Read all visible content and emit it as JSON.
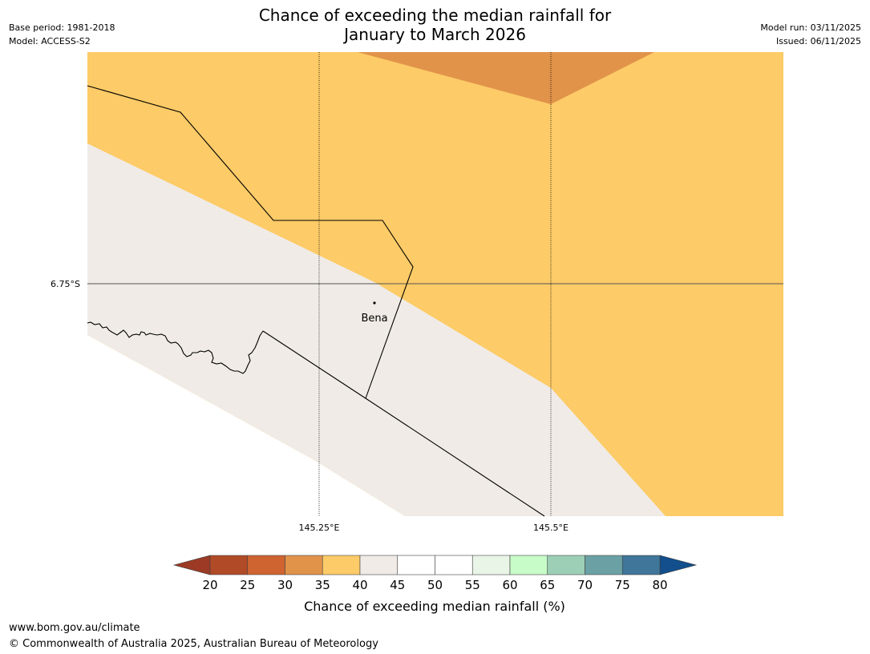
{
  "title": {
    "line1": "Chance of exceeding the median rainfall for",
    "line2": "January to March 2026"
  },
  "meta": {
    "base_period": "Base period: 1981-2018",
    "model": "Model: ACCESS-S2",
    "model_run": "Model run: 03/11/2025",
    "issued": "Issued: 06/11/2025"
  },
  "map": {
    "lat_label": "6.75°S",
    "lon_labels": [
      "145.25°E",
      "145.5°E"
    ],
    "place": "Bena"
  },
  "colorbar": {
    "label": "Chance of exceeding median rainfall (%)",
    "ticks": [
      "20",
      "25",
      "30",
      "35",
      "40",
      "45",
      "50",
      "55",
      "60",
      "65",
      "70",
      "75",
      "80"
    ],
    "under_color": "#9c3a26",
    "over_color": "#124f8c",
    "bin_colors": [
      "#b04a27",
      "#cf6431",
      "#e1934a",
      "#fdcb67",
      "#f0ebe6",
      "#ffffff",
      "#ffffff",
      "#e9f5e6",
      "#c7fbc8",
      "#9ccfb6",
      "#6ba1a4",
      "#3f7699"
    ]
  },
  "colors": {
    "band_orange": "#e1934a",
    "band_yellow": "#fdcb67",
    "band_neutral": "#f0ebe6"
  },
  "footer": {
    "url": "www.bom.gov.au/climate",
    "copyright": "© Commonwealth of Australia 2025, Australian Bureau of Meteorology"
  }
}
